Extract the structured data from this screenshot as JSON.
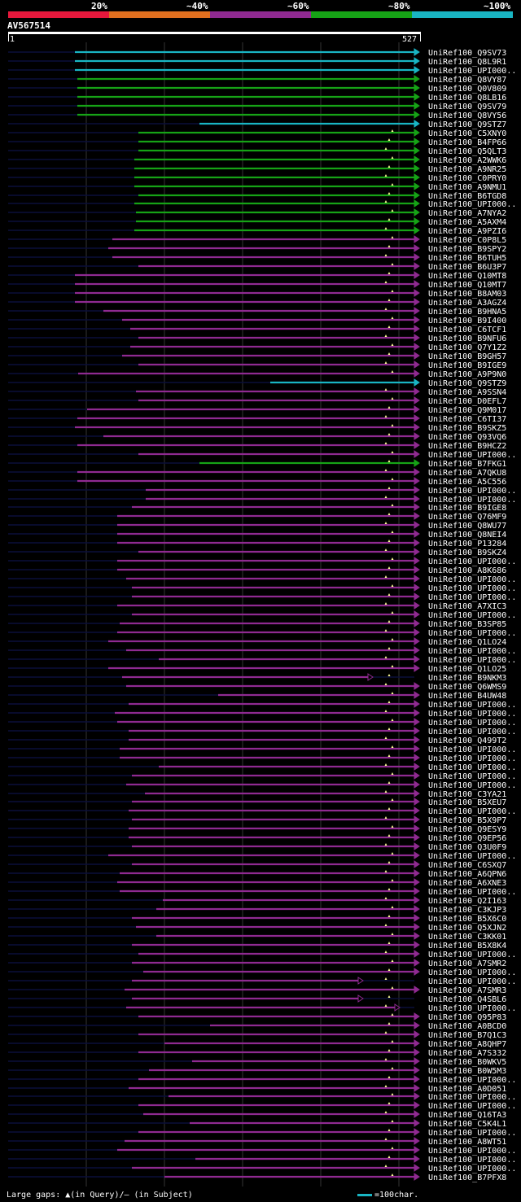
{
  "legend": {
    "segments": [
      {
        "label": "20%",
        "color": "#e6183c"
      },
      {
        "label": "~40%",
        "color": "#e06f1f"
      },
      {
        "label": "~60%",
        "color": "#8f2a91"
      },
      {
        "label": "~80%",
        "color": "#16a316"
      },
      {
        "label": "~100%",
        "color": "#19b5c3"
      }
    ]
  },
  "query": {
    "name": "AV567514",
    "start_label": "1",
    "end_label": "527",
    "length": 527
  },
  "colors": {
    "cyan": "#19b5c3",
    "green": "#16a316",
    "purple": "#8f2a91",
    "dark": "#0a0f3a",
    "gap": "#ffff99",
    "grid": "#333333"
  },
  "hits": [
    {
      "name": "UniRef100_Q9SV73",
      "c": "cyan",
      "s": 92
    },
    {
      "name": "UniRef100_Q8L9R1",
      "c": "cyan",
      "s": 92
    },
    {
      "name": "UniRef100_UPI000..",
      "c": "cyan",
      "s": 92
    },
    {
      "name": "UniRef100_Q8VY87",
      "c": "green",
      "s": 95
    },
    {
      "name": "UniRef100_Q0V809",
      "c": "green",
      "s": 95
    },
    {
      "name": "UniRef100_Q8LB16",
      "c": "green",
      "s": 95
    },
    {
      "name": "UniRef100_Q9SV79",
      "c": "green",
      "s": 95
    },
    {
      "name": "UniRef100_Q8VY56",
      "c": "green",
      "s": 95
    },
    {
      "name": "UniRef100_Q9STZ7",
      "c": "cyan",
      "s": 245
    },
    {
      "name": "UniRef100_C5XNY0",
      "c": "green",
      "s": 170
    },
    {
      "name": "UniRef100_B4FP66",
      "c": "green",
      "s": 170
    },
    {
      "name": "UniRef100_Q5QLT3",
      "c": "green",
      "s": 170
    },
    {
      "name": "UniRef100_A2WWK6",
      "c": "green",
      "s": 165
    },
    {
      "name": "UniRef100_A9NR25",
      "c": "green",
      "s": 165
    },
    {
      "name": "UniRef100_C0PRY0",
      "c": "green",
      "s": 165
    },
    {
      "name": "UniRef100_A9NMU1",
      "c": "green",
      "s": 165
    },
    {
      "name": "UniRef100_B6TGD8",
      "c": "green",
      "s": 170
    },
    {
      "name": "UniRef100_UPI000..",
      "c": "green",
      "s": 165
    },
    {
      "name": "UniRef100_A7NYA2",
      "c": "green",
      "s": 167
    },
    {
      "name": "UniRef100_A5AXM4",
      "c": "green",
      "s": 167
    },
    {
      "name": "UniRef100_A9PZI6",
      "c": "green",
      "s": 165
    },
    {
      "name": "UniRef100_C0P8L5",
      "c": "purple",
      "s": 138
    },
    {
      "name": "UniRef100_B9SPY2",
      "c": "purple",
      "s": 133
    },
    {
      "name": "UniRef100_B6TUH5",
      "c": "purple",
      "s": 138
    },
    {
      "name": "UniRef100_B6U3P7",
      "c": "purple",
      "s": 170
    },
    {
      "name": "UniRef100_Q10MT8",
      "c": "purple",
      "s": 92
    },
    {
      "name": "UniRef100_Q10MT7",
      "c": "purple",
      "s": 92
    },
    {
      "name": "UniRef100_B8AM03",
      "c": "purple",
      "s": 92
    },
    {
      "name": "UniRef100_A3AGZ4",
      "c": "purple",
      "s": 92
    },
    {
      "name": "UniRef100_B9HNA5",
      "c": "purple",
      "s": 127
    },
    {
      "name": "UniRef100_B9I400",
      "c": "purple",
      "s": 150
    },
    {
      "name": "UniRef100_C6TCF1",
      "c": "purple",
      "s": 160
    },
    {
      "name": "UniRef100_B9NFU6",
      "c": "purple",
      "s": 170
    },
    {
      "name": "UniRef100_Q7Y1Z2",
      "c": "purple",
      "s": 160
    },
    {
      "name": "UniRef100_B9GH57",
      "c": "purple",
      "s": 150
    },
    {
      "name": "UniRef100_B9IGE9",
      "c": "purple",
      "s": 170
    },
    {
      "name": "UniRef100_A9P9N0",
      "c": "purple",
      "s": 96
    },
    {
      "name": "UniRef100_Q9STZ9",
      "c": "cyan",
      "s": 332
    },
    {
      "name": "UniRef100_A9SSN4",
      "c": "purple",
      "s": 167
    },
    {
      "name": "UniRef100_D0EFL7",
      "c": "purple",
      "s": 170
    },
    {
      "name": "UniRef100_Q9M017",
      "c": "purple",
      "s": 107
    },
    {
      "name": "UniRef100_C6TI37",
      "c": "purple",
      "s": 95
    },
    {
      "name": "UniRef100_B9SKZ5",
      "c": "purple",
      "s": 92
    },
    {
      "name": "UniRef100_Q93VQ6",
      "c": "purple",
      "s": 127
    },
    {
      "name": "UniRef100_B9HCZ2",
      "c": "purple",
      "s": 95
    },
    {
      "name": "UniRef100_UPI000..",
      "c": "purple",
      "s": 170
    },
    {
      "name": "UniRef100_B7FKG1",
      "c": "green",
      "s": 245
    },
    {
      "name": "UniRef100_A7QKU8",
      "c": "purple",
      "s": 95
    },
    {
      "name": "UniRef100_A5C556",
      "c": "purple",
      "s": 95
    },
    {
      "name": "UniRef100_UPI000..",
      "c": "purple",
      "s": 179
    },
    {
      "name": "UniRef100_UPI000..",
      "c": "purple",
      "s": 179
    },
    {
      "name": "UniRef100_B9IGE8",
      "c": "purple",
      "s": 162
    },
    {
      "name": "UniRef100_Q76MF9",
      "c": "purple",
      "s": 144
    },
    {
      "name": "UniRef100_Q8WU77",
      "c": "purple",
      "s": 144
    },
    {
      "name": "UniRef100_Q8NEI4",
      "c": "purple",
      "s": 144
    },
    {
      "name": "UniRef100_P13284",
      "c": "purple",
      "s": 144
    },
    {
      "name": "UniRef100_B9SKZ4",
      "c": "purple",
      "s": 170
    },
    {
      "name": "UniRef100_UPI000..",
      "c": "purple",
      "s": 144
    },
    {
      "name": "UniRef100_A8K686",
      "c": "purple",
      "s": 144
    },
    {
      "name": "UniRef100_UPI000..",
      "c": "purple",
      "s": 155
    },
    {
      "name": "UniRef100_UPI000..",
      "c": "purple",
      "s": 162
    },
    {
      "name": "UniRef100_UPI000..",
      "c": "purple",
      "s": 162
    },
    {
      "name": "UniRef100_A7XIC3",
      "c": "purple",
      "s": 144
    },
    {
      "name": "UniRef100_UPI000..",
      "c": "purple",
      "s": 162
    },
    {
      "name": "UniRef100_B3SP85",
      "c": "purple",
      "s": 147
    },
    {
      "name": "UniRef100_UPI000..",
      "c": "purple",
      "s": 144
    },
    {
      "name": "UniRef100_Q1LO24",
      "c": "purple",
      "s": 133
    },
    {
      "name": "UniRef100_UPI000..",
      "c": "purple",
      "s": 155
    },
    {
      "name": "UniRef100_UPI000..",
      "c": "purple",
      "s": 195
    },
    {
      "name": "UniRef100_Q1LO25",
      "c": "purple",
      "s": 133
    },
    {
      "name": "UniRef100_B9NKM3",
      "c": "purple",
      "s": 150,
      "e": 452
    },
    {
      "name": "UniRef100_Q6WMS9",
      "c": "purple",
      "s": 155
    },
    {
      "name": "UniRef100_B4UW48",
      "c": "purple",
      "s": 268
    },
    {
      "name": "UniRef100_UPI000..",
      "c": "purple",
      "s": 158
    },
    {
      "name": "UniRef100_UPI000..",
      "c": "purple",
      "s": 141
    },
    {
      "name": "UniRef100_UPI000..",
      "c": "purple",
      "s": 144
    },
    {
      "name": "UniRef100_UPI000..",
      "c": "purple",
      "s": 158
    },
    {
      "name": "UniRef100_Q499T2",
      "c": "purple",
      "s": 158
    },
    {
      "name": "UniRef100_UPI000..",
      "c": "purple",
      "s": 147
    },
    {
      "name": "UniRef100_UPI000..",
      "c": "purple",
      "s": 147
    },
    {
      "name": "UniRef100_UPI000..",
      "c": "purple",
      "s": 195
    },
    {
      "name": "UniRef100_UPI000..",
      "c": "purple",
      "s": 162
    },
    {
      "name": "UniRef100_UPI000..",
      "c": "purple",
      "s": 155
    },
    {
      "name": "UniRef100_C3YA21",
      "c": "purple",
      "s": 178
    },
    {
      "name": "UniRef100_B5XEU7",
      "c": "purple",
      "s": 162
    },
    {
      "name": "UniRef100_UPI000..",
      "c": "purple",
      "s": 158
    },
    {
      "name": "UniRef100_B5X9P7",
      "c": "purple",
      "s": 162
    },
    {
      "name": "UniRef100_Q9ESY9",
      "c": "purple",
      "s": 158
    },
    {
      "name": "UniRef100_Q9EP56",
      "c": "purple",
      "s": 158
    },
    {
      "name": "UniRef100_Q3U0F9",
      "c": "purple",
      "s": 162
    },
    {
      "name": "UniRef100_UPI000..",
      "c": "purple",
      "s": 133
    },
    {
      "name": "UniRef100_C6SXQ7",
      "c": "purple",
      "s": 162
    },
    {
      "name": "UniRef100_A6QPN6",
      "c": "purple",
      "s": 147
    },
    {
      "name": "UniRef100_A6XNE3",
      "c": "purple",
      "s": 144
    },
    {
      "name": "UniRef100_UPI000..",
      "c": "purple",
      "s": 147
    },
    {
      "name": "UniRef100_Q2I163",
      "c": "purple",
      "s": 200
    },
    {
      "name": "UniRef100_C3KJP3",
      "c": "purple",
      "s": 192
    },
    {
      "name": "UniRef100_B5X6C0",
      "c": "purple",
      "s": 162
    },
    {
      "name": "UniRef100_Q5XJN2",
      "c": "purple",
      "s": 167
    },
    {
      "name": "UniRef100_C3KK01",
      "c": "purple",
      "s": 192
    },
    {
      "name": "UniRef100_B5X8K4",
      "c": "purple",
      "s": 162
    },
    {
      "name": "UniRef100_UPI000..",
      "c": "purple",
      "s": 170
    },
    {
      "name": "UniRef100_A7SMR2",
      "c": "purple",
      "s": 162
    },
    {
      "name": "UniRef100_UPI000..",
      "c": "purple",
      "s": 176
    },
    {
      "name": "UniRef100_UPI000..",
      "c": "purple",
      "s": 162,
      "e": 440
    },
    {
      "name": "UniRef100_A7SMR3",
      "c": "purple",
      "s": 153
    },
    {
      "name": "UniRef100_Q4SBL6",
      "c": "purple",
      "s": 162,
      "e": 440
    },
    {
      "name": "UniRef100_UPI000..",
      "c": "purple",
      "s": 155,
      "e": 485
    },
    {
      "name": "UniRef100_Q95P83",
      "c": "purple",
      "s": 170
    },
    {
      "name": "UniRef100_A0BCD0",
      "c": "purple",
      "s": 258
    },
    {
      "name": "UniRef100_B7Q1C3",
      "c": "purple",
      "s": 170
    },
    {
      "name": "UniRef100_A8QHP7",
      "c": "purple",
      "s": 202
    },
    {
      "name": "UniRef100_A7S332",
      "c": "purple",
      "s": 170
    },
    {
      "name": "UniRef100_B0WKV5",
      "c": "purple",
      "s": 236
    },
    {
      "name": "UniRef100_B0W5M3",
      "c": "purple",
      "s": 183
    },
    {
      "name": "UniRef100_UPI000..",
      "c": "purple",
      "s": 170
    },
    {
      "name": "UniRef100_A0D051",
      "c": "purple",
      "s": 158
    },
    {
      "name": "UniRef100_UPI000..",
      "c": "purple",
      "s": 207
    },
    {
      "name": "UniRef100_UPI000..",
      "c": "purple",
      "s": 170
    },
    {
      "name": "UniRef100_Q16TA3",
      "c": "purple",
      "s": 176
    },
    {
      "name": "UniRef100_C5K4L1",
      "c": "purple",
      "s": 233
    },
    {
      "name": "UniRef100_UPI000..",
      "c": "purple",
      "s": 170
    },
    {
      "name": "UniRef100_A8WT51",
      "c": "purple",
      "s": 153
    },
    {
      "name": "UniRef100_UPI000..",
      "c": "purple",
      "s": 144
    },
    {
      "name": "UniRef100_UPI000..",
      "c": "purple",
      "s": 240
    },
    {
      "name": "UniRef100_UPI000..",
      "c": "purple",
      "s": 162
    },
    {
      "name": "UniRef100_B7PFX8",
      "c": "purple",
      "s": 202
    }
  ],
  "footer": {
    "gaps_label": "Large gaps: ▲(in Query)/— (in Subject)",
    "key_label": "=100char."
  }
}
